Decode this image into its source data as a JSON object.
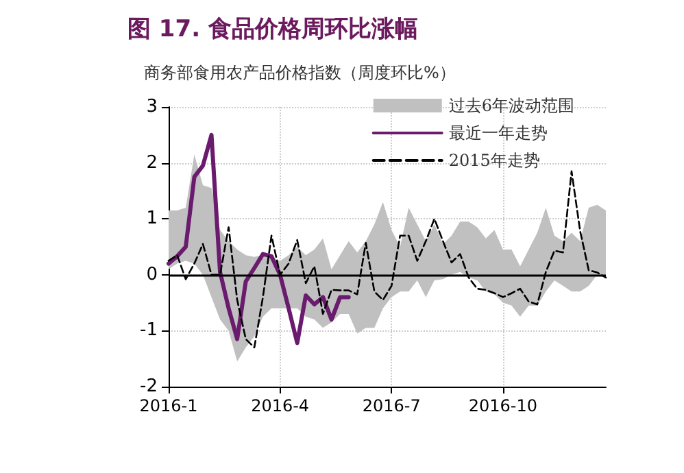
{
  "chart_data": {
    "type": "line",
    "title": "图 17. 食品价格周环比涨幅",
    "subtitle": "商务部食用农产品价格指数（周度环比%）",
    "categories": [
      "2016-1",
      null,
      null,
      null,
      null,
      null,
      null,
      null,
      null,
      null,
      null,
      null,
      null,
      "2016-4",
      null,
      null,
      null,
      null,
      null,
      null,
      null,
      null,
      null,
      null,
      null,
      null,
      "2016-7",
      null,
      null,
      null,
      null,
      null,
      null,
      null,
      null,
      null,
      null,
      null,
      null,
      "2016-10",
      null,
      null,
      null,
      null,
      null,
      null,
      null,
      null,
      null,
      null,
      null,
      null
    ],
    "series": [
      {
        "name": "过去6年波动范围",
        "type": "area",
        "color": "#c0c0c0",
        "values": [
          null,
          null,
          null,
          null,
          null,
          null,
          null,
          null,
          null,
          null,
          null,
          null,
          null,
          null,
          null,
          null,
          null,
          null,
          null,
          null,
          null,
          null,
          null,
          null,
          null,
          null,
          null,
          null,
          null,
          null,
          null,
          null,
          null,
          null,
          null,
          null,
          null,
          null,
          null,
          null,
          null,
          null,
          null,
          null,
          null,
          null,
          null,
          null,
          null,
          null,
          null,
          null
        ],
        "lower": [
          0.1,
          0.2,
          0.25,
          0.2,
          0,
          -0.4,
          -0.8,
          -1.0,
          -1.55,
          -1.3,
          -1.1,
          -0.75,
          -0.6,
          -0.6,
          -0.6,
          -0.6,
          -0.75,
          -0.8,
          -0.95,
          -0.85,
          -0.7,
          -0.7,
          -1.05,
          -0.95,
          -0.95,
          -0.6,
          -0.4,
          -0.3,
          -0.3,
          -0.1,
          -0.4,
          -0.1,
          -0.08,
          0,
          0.05,
          -0.05,
          -0.1,
          -0.3,
          -0.35,
          -0.5,
          -0.55,
          -0.75,
          -0.55,
          -0.55,
          -0.3,
          -0.1,
          -0.2,
          -0.3,
          -0.3,
          -0.2,
          0,
          0
        ],
        "upper": [
          1.15,
          1.15,
          1.2,
          2.15,
          1.6,
          1.55,
          0.8,
          0.6,
          0.45,
          0.35,
          0.32,
          0.35,
          0.3,
          0.25,
          0.35,
          0.5,
          0.35,
          0.45,
          0.65,
          0.1,
          0.35,
          0.6,
          0.4,
          0.6,
          0.9,
          1.3,
          0.8,
          0.5,
          1.2,
          0.9,
          0.6,
          0.9,
          0.55,
          0.7,
          0.95,
          0.95,
          0.85,
          0.65,
          0.8,
          0.45,
          0.45,
          0.15,
          0.45,
          0.75,
          1.2,
          0.7,
          0.6,
          0.75,
          0.6,
          1.2,
          1.25,
          1.15
        ]
      },
      {
        "name": "最近一年走势",
        "color": "#6a1b6e",
        "line_style": "solid",
        "values": [
          0.2,
          0.33,
          0.5,
          1.75,
          1.95,
          2.5,
          0.05,
          -0.6,
          -1.15,
          -0.12,
          0.12,
          0.37,
          0.33,
          0,
          -0.6,
          -1.22,
          -0.37,
          -0.53,
          -0.4,
          -0.8,
          -0.4,
          -0.4,
          null,
          null,
          null,
          null,
          null,
          null,
          null,
          null,
          null,
          null,
          null,
          null,
          null,
          null,
          null,
          null,
          null,
          null,
          null,
          null,
          null,
          null,
          null,
          null,
          null,
          null,
          null,
          null,
          null,
          null
        ]
      },
      {
        "name": "2015年走势",
        "color": "#000000",
        "line_style": "dashed",
        "values": [
          0.25,
          0.35,
          -0.08,
          0.2,
          0.55,
          0,
          0,
          0.85,
          -0.45,
          -1.15,
          -1.3,
          -0.4,
          0.7,
          0,
          0.2,
          0.62,
          -0.15,
          0.15,
          -0.7,
          -0.27,
          -0.28,
          -0.28,
          -0.35,
          0.57,
          -0.3,
          -0.45,
          -0.2,
          0.7,
          0.7,
          0.25,
          0.6,
          1.0,
          0.6,
          0.22,
          0.37,
          -0.05,
          -0.25,
          -0.27,
          -0.33,
          -0.4,
          -0.33,
          -0.25,
          -0.48,
          -0.53,
          0.05,
          0.43,
          0.4,
          1.85,
          0.78,
          0.08,
          0.04,
          -0.05
        ]
      }
    ],
    "ylim": [
      -2,
      3
    ],
    "yticks": [
      -2,
      -1,
      0,
      1,
      2,
      3
    ],
    "grid": true,
    "legend": "top right",
    "marker": "none",
    "ref_lines": [
      {
        "axis": "y",
        "value": 0,
        "color": "#000000"
      }
    ]
  }
}
